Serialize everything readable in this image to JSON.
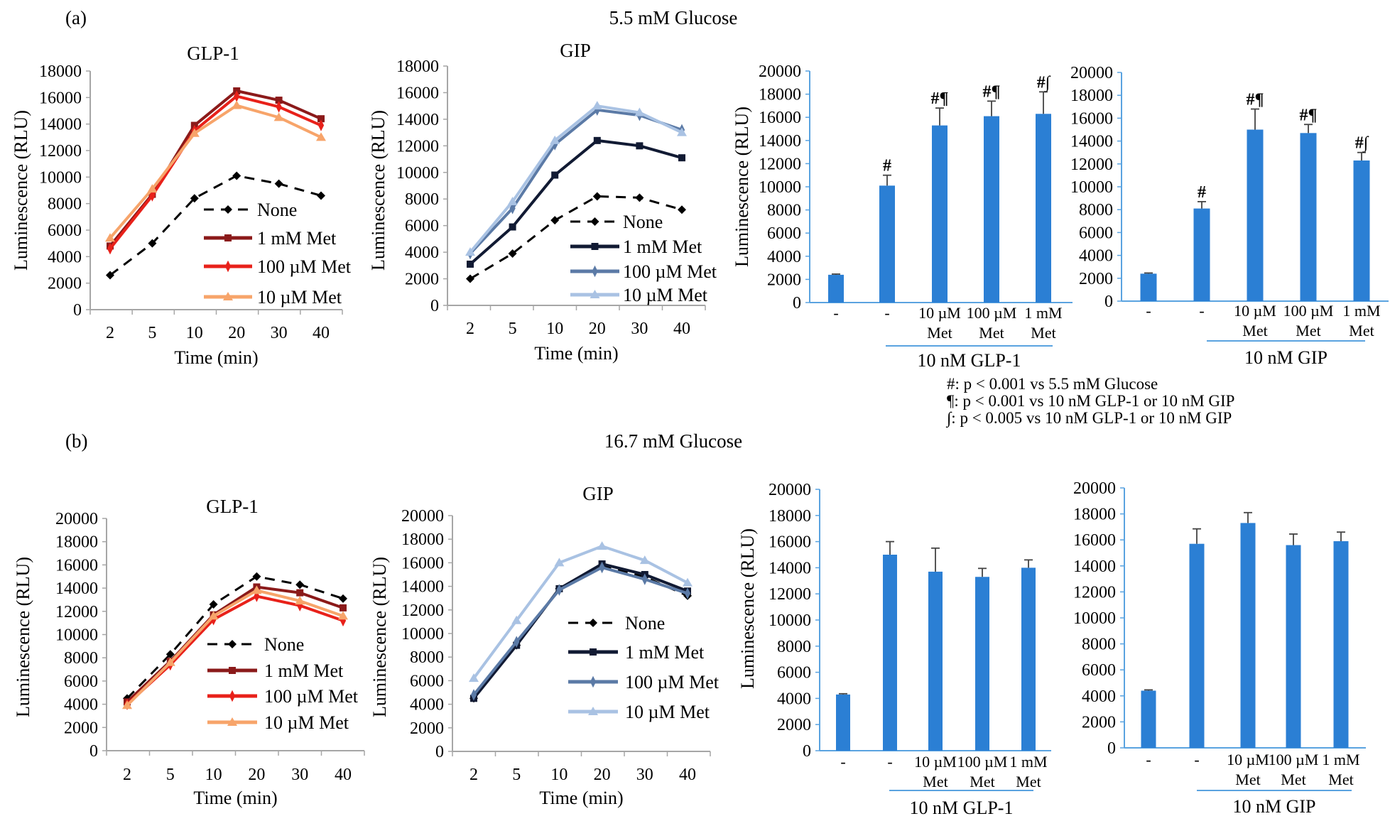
{
  "figure": {
    "panel_a_label": "(a)",
    "panel_a_title": "5.5 mM Glucose",
    "panel_b_label": "(b)",
    "panel_b_title": "16.7 mM Glucose",
    "footnotes": [
      "#: p < 0.001 vs 5.5 mM Glucose",
      "¶: p < 0.001 vs 10 nM GLP-1 or 10 nM GIP",
      "∫:  p < 0.005 vs 10 nM GLP-1 or 10 nM GIP"
    ]
  },
  "chart_data": [
    {
      "type": "line",
      "panel": "(a)",
      "title": "GLP-1",
      "xlabel": "Time (min)",
      "ylabel": "Luminescence (RLU)",
      "categories": [
        "2",
        "5",
        "10",
        "20",
        "30",
        "40"
      ],
      "ylim": [
        0,
        18000
      ],
      "yticks": [
        "0",
        "2000",
        "4000",
        "6000",
        "8000",
        "10000",
        "12000",
        "14000",
        "16000",
        "18000"
      ],
      "grid": false,
      "legend": "center-right",
      "series": [
        {
          "name": "None",
          "color": "#000000",
          "marker": "diamond",
          "dashed": true,
          "values": [
            2600,
            5000,
            8400,
            10100,
            9500,
            8600
          ]
        },
        {
          "name": "1 mM Met",
          "color": "#8b1a1a",
          "marker": "square",
          "dashed": false,
          "values": [
            4800,
            8700,
            13900,
            16500,
            15800,
            14400
          ]
        },
        {
          "name": "100 µM Met",
          "color": "#e8211a",
          "marker": "star",
          "dashed": false,
          "values": [
            4600,
            8600,
            13500,
            16100,
            15300,
            13900
          ]
        },
        {
          "name": "10 µM Met",
          "color": "#f7a46a",
          "marker": "triangle",
          "dashed": false,
          "values": [
            5400,
            9100,
            13300,
            15400,
            14500,
            13000
          ]
        }
      ]
    },
    {
      "type": "line",
      "panel": "(a)",
      "title": "GIP",
      "xlabel": "Time (min)",
      "ylabel": "Luminescence (RLU)",
      "categories": [
        "2",
        "5",
        "10",
        "20",
        "30",
        "40"
      ],
      "ylim": [
        0,
        18000
      ],
      "yticks": [
        "0",
        "2000",
        "4000",
        "6000",
        "8000",
        "10000",
        "12000",
        "14000",
        "16000",
        "18000"
      ],
      "grid": false,
      "legend": "center-right",
      "series": [
        {
          "name": "None",
          "color": "#000000",
          "marker": "diamond",
          "dashed": true,
          "values": [
            2000,
            3900,
            6400,
            8200,
            8100,
            7200
          ]
        },
        {
          "name": "1 mM Met",
          "color": "#111a33",
          "marker": "square",
          "dashed": false,
          "values": [
            3100,
            5900,
            9800,
            12400,
            12000,
            11100
          ]
        },
        {
          "name": "100 µM Met",
          "color": "#5b7aa6",
          "marker": "star",
          "dashed": false,
          "values": [
            3900,
            7300,
            12100,
            14700,
            14300,
            13200
          ]
        },
        {
          "name": "10 µM Met",
          "color": "#a9c2e3",
          "marker": "triangle",
          "dashed": false,
          "values": [
            4000,
            7800,
            12400,
            15000,
            14500,
            13000
          ]
        }
      ]
    },
    {
      "type": "bar",
      "panel": "(a)",
      "ylabel": "Luminescence (RLU)",
      "categories": [
        [
          "-"
        ],
        [
          "-"
        ],
        [
          "10 µM",
          "Met"
        ],
        [
          "100 µM",
          "Met"
        ],
        [
          "1 mM",
          "Met"
        ]
      ],
      "group_label": "10 nM GLP-1",
      "ylim": [
        0,
        20000
      ],
      "yticks": [
        "0",
        "2000",
        "4000",
        "6000",
        "8000",
        "10000",
        "12000",
        "14000",
        "16000",
        "18000",
        "20000"
      ],
      "color": "#2b7fd4",
      "axis_color": "#5aa3e0",
      "values": [
        2400,
        10100,
        15300,
        16100,
        16300
      ],
      "errors": [
        60,
        900,
        1500,
        1300,
        1900
      ],
      "annotations": [
        "",
        "#",
        "#¶",
        "#¶",
        "#∫"
      ]
    },
    {
      "type": "bar",
      "panel": "(a)",
      "ylabel": "",
      "categories": [
        [
          "-"
        ],
        [
          "-"
        ],
        [
          "10 µM",
          "Met"
        ],
        [
          "100 µM",
          "Met"
        ],
        [
          "1 mM",
          "Met"
        ]
      ],
      "group_label": "10 nM GIP",
      "ylim": [
        0,
        20000
      ],
      "yticks": [
        "0",
        "2000",
        "4000",
        "6000",
        "8000",
        "10000",
        "12000",
        "14000",
        "16000",
        "18000",
        "20000"
      ],
      "color": "#2b7fd4",
      "axis_color": "#5aa3e0",
      "values": [
        2400,
        8100,
        15000,
        14700,
        12300
      ],
      "errors": [
        60,
        600,
        1800,
        750,
        700
      ],
      "annotations": [
        "",
        "#",
        "#¶",
        "#¶",
        "#∫"
      ]
    },
    {
      "type": "line",
      "panel": "(b)",
      "title": "GLP-1",
      "xlabel": "Time (min)",
      "ylabel": "Luminescence (RLU)",
      "categories": [
        "2",
        "5",
        "10",
        "20",
        "30",
        "40"
      ],
      "ylim": [
        0,
        20000
      ],
      "yticks": [
        "0",
        "2000",
        "4000",
        "6000",
        "8000",
        "10000",
        "12000",
        "14000",
        "16000",
        "18000",
        "20000"
      ],
      "grid": false,
      "legend": "center-right",
      "series": [
        {
          "name": "None",
          "color": "#000000",
          "marker": "diamond",
          "dashed": true,
          "values": [
            4500,
            8300,
            12600,
            15000,
            14300,
            13100
          ]
        },
        {
          "name": "1 mM Met",
          "color": "#8b1a1a",
          "marker": "square",
          "dashed": false,
          "values": [
            4200,
            7700,
            11700,
            14100,
            13600,
            12300
          ]
        },
        {
          "name": "100 µM Met",
          "color": "#e8211a",
          "marker": "star",
          "dashed": false,
          "values": [
            4000,
            7400,
            11300,
            13300,
            12500,
            11200
          ]
        },
        {
          "name": "10 µM Met",
          "color": "#f7a46a",
          "marker": "triangle",
          "dashed": false,
          "values": [
            3900,
            7600,
            11600,
            13800,
            12900,
            11600
          ]
        }
      ]
    },
    {
      "type": "line",
      "panel": "(b)",
      "title": "GIP",
      "xlabel": "Time (min)",
      "ylabel": "Luminescence (RLU)",
      "categories": [
        "2",
        "5",
        "10",
        "20",
        "30",
        "40"
      ],
      "ylim": [
        0,
        20000
      ],
      "yticks": [
        "0",
        "2000",
        "4000",
        "6000",
        "8000",
        "10000",
        "12000",
        "14000",
        "16000",
        "18000",
        "20000"
      ],
      "grid": false,
      "legend": "center-right",
      "series": [
        {
          "name": "None",
          "color": "#000000",
          "marker": "diamond",
          "dashed": true,
          "values": [
            4500,
            9000,
            13800,
            15800,
            14800,
            13200
          ]
        },
        {
          "name": "1 mM Met",
          "color": "#111a33",
          "marker": "square",
          "dashed": false,
          "values": [
            4500,
            9000,
            13800,
            15900,
            15000,
            13600
          ]
        },
        {
          "name": "100 µM Met",
          "color": "#5b7aa6",
          "marker": "star",
          "dashed": false,
          "values": [
            4800,
            9300,
            13700,
            15600,
            14600,
            13400
          ]
        },
        {
          "name": "10 µM Met",
          "color": "#a9c2e3",
          "marker": "triangle",
          "dashed": false,
          "values": [
            6200,
            11100,
            16000,
            17400,
            16200,
            14300
          ]
        }
      ]
    },
    {
      "type": "bar",
      "panel": "(b)",
      "ylabel": "Luminescence (RLU)",
      "categories": [
        [
          "-"
        ],
        [
          "-"
        ],
        [
          "10 µM",
          "Met"
        ],
        [
          "100 µM",
          "Met"
        ],
        [
          "1 mM",
          "Met"
        ]
      ],
      "group_label": "10 nM GLP-1",
      "ylim": [
        0,
        20000
      ],
      "yticks": [
        "0",
        "2000",
        "4000",
        "6000",
        "8000",
        "10000",
        "12000",
        "14000",
        "16000",
        "18000",
        "20000"
      ],
      "color": "#2b7fd4",
      "axis_color": "#5aa3e0",
      "values": [
        4300,
        15000,
        13700,
        13300,
        14000
      ],
      "errors": [
        60,
        1000,
        1800,
        650,
        600
      ],
      "annotations": [
        "",
        "",
        "",
        "",
        ""
      ]
    },
    {
      "type": "bar",
      "panel": "(b)",
      "ylabel": "",
      "categories": [
        [
          "-"
        ],
        [
          "-"
        ],
        [
          "10 µM",
          "Met"
        ],
        [
          "100 µM",
          "Met"
        ],
        [
          "1 mM",
          "Met"
        ]
      ],
      "group_label": "10 nM GIP",
      "ylim": [
        0,
        20000
      ],
      "yticks": [
        "0",
        "2000",
        "4000",
        "6000",
        "8000",
        "10000",
        "12000",
        "14000",
        "16000",
        "18000",
        "20000"
      ],
      "color": "#2b7fd4",
      "axis_color": "#5aa3e0",
      "values": [
        4400,
        15700,
        17300,
        15600,
        15900
      ],
      "errors": [
        60,
        1150,
        800,
        850,
        700
      ],
      "annotations": [
        "",
        "",
        "",
        "",
        ""
      ]
    }
  ]
}
